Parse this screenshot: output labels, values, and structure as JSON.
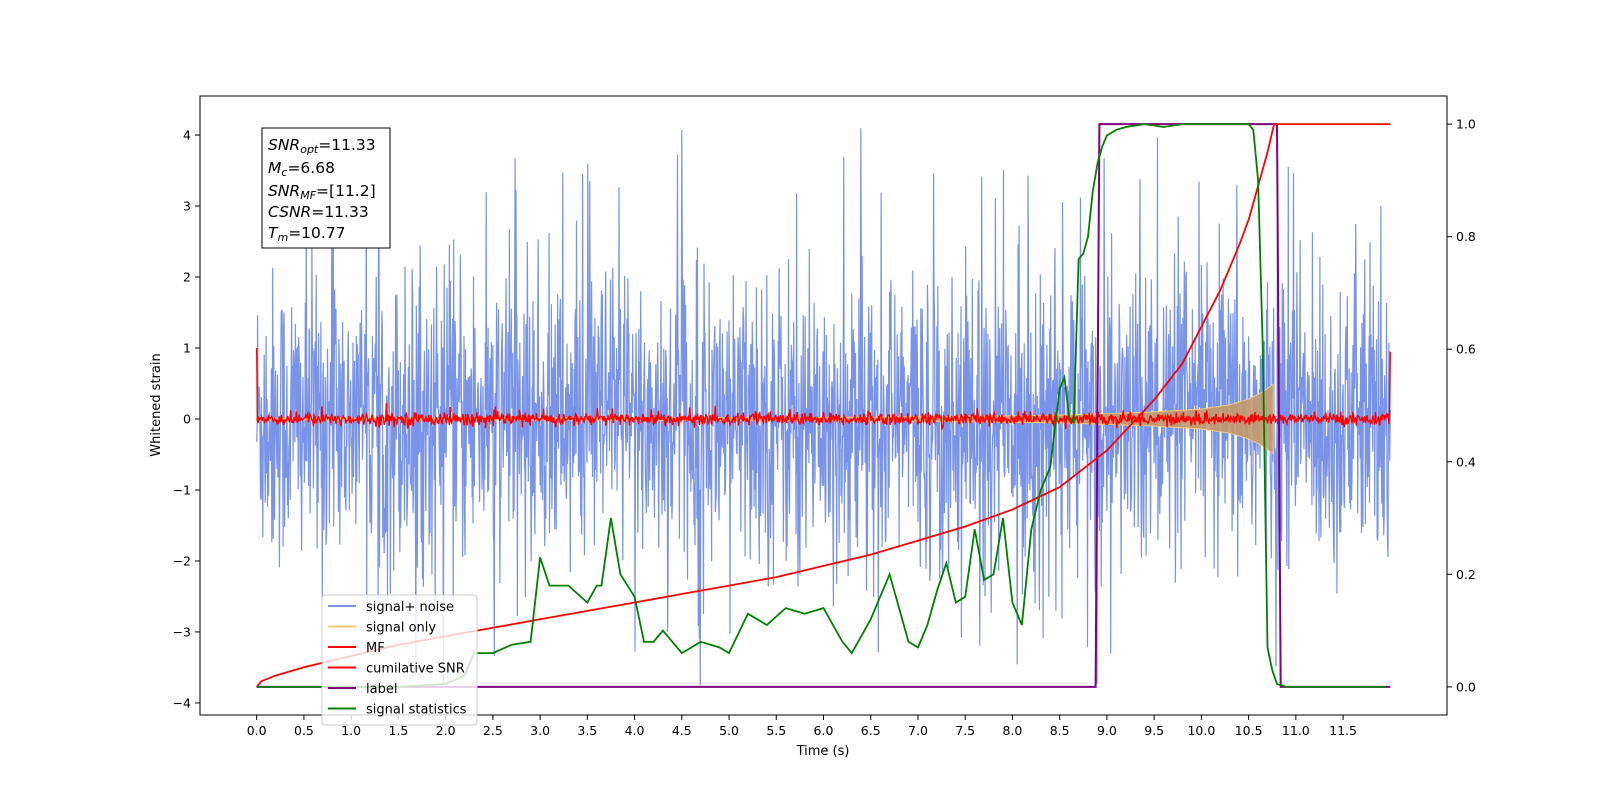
{
  "chart_data": {
    "type": "line",
    "title": "",
    "xlabel": "Time (s)",
    "ylabel": "Whitened strain",
    "xlim": [
      -0.6,
      12.6
    ],
    "ylim": [
      -4.17,
      4.55
    ],
    "y2lim": [
      -0.05,
      1.05
    ],
    "x_ticks": [
      "0.0",
      "0.5",
      "1.0",
      "1.5",
      "2.0",
      "2.5",
      "3.0",
      "3.5",
      "4.0",
      "4.5",
      "5.0",
      "5.5",
      "6.0",
      "6.5",
      "7.0",
      "7.5",
      "8.0",
      "8.5",
      "9.0",
      "9.5",
      "10.0",
      "10.5",
      "11.0",
      "11.5"
    ],
    "y_ticks": [
      "4",
      "3",
      "2",
      "1",
      "0",
      "−1",
      "−2",
      "−3",
      "−4"
    ],
    "y2_ticks": [
      "1.0",
      "0.8",
      "0.6",
      "0.4",
      "0.2",
      "0.0"
    ],
    "annotation": {
      "snr_opt": {
        "label": "SNR",
        "sub": "opt",
        "value": "=11.33"
      },
      "mc": {
        "label": "M",
        "sub": "c",
        "value": "=6.68"
      },
      "snr_mf": {
        "label": "SNR",
        "sub": "MF",
        "value": "=[11.2]"
      },
      "csnr": {
        "label": "CSNR",
        "sub": "",
        "value": "=11.33"
      },
      "tm": {
        "label": "T",
        "sub": "m",
        "value": "=10.77"
      }
    },
    "legend_position": "lower-left",
    "legend": [
      {
        "name": "signal+ noise",
        "color": "#7893e8"
      },
      {
        "name": "signal only",
        "color": "#f5c97a"
      },
      {
        "name": "MF",
        "color": "#ff0000"
      },
      {
        "name": "cumilative SNR",
        "color": "#ff0000"
      },
      {
        "name": "label",
        "color": "#800080"
      },
      {
        "name": "signal statistics",
        "color": "#008000"
      }
    ],
    "series": [
      {
        "name": "signal+ noise",
        "axis": "left",
        "color": "#7893e8",
        "description_values": {
          "x_start": 0.0,
          "x_end": 12.0,
          "y_typical_range": [
            -2.5,
            2.5
          ],
          "y_peak_max": 4.15,
          "y_peak_min": -3.75
        }
      },
      {
        "name": "signal only",
        "axis": "left",
        "color": "#f5c97a",
        "envelope": {
          "x": [
            0,
            2,
            4,
            6,
            7,
            8,
            8.5,
            9,
            9.5,
            10,
            10.3,
            10.5,
            10.65,
            10.77
          ],
          "amplitude": [
            0.01,
            0.012,
            0.016,
            0.022,
            0.03,
            0.045,
            0.055,
            0.075,
            0.1,
            0.14,
            0.2,
            0.28,
            0.38,
            0.5
          ]
        }
      },
      {
        "name": "MF",
        "axis": "left",
        "color": "#ff0000",
        "description_values": {
          "x_start": 0.0,
          "x_end": 12.0,
          "y_typical_range": [
            -0.12,
            0.12
          ],
          "y_start": 1.0,
          "y_end": 0.95
        }
      },
      {
        "name": "cumilative SNR",
        "axis": "right",
        "color": "#ff0000",
        "x": [
          0.0,
          0.05,
          0.2,
          0.5,
          1.0,
          1.5,
          2.0,
          2.5,
          3.0,
          3.5,
          4.0,
          4.5,
          5.0,
          5.5,
          6.0,
          6.5,
          7.0,
          7.5,
          8.0,
          8.5,
          9.0,
          9.5,
          9.8,
          10.0,
          10.2,
          10.4,
          10.5,
          10.6,
          10.7,
          10.77,
          12.0
        ],
        "y": [
          0.0,
          0.01,
          0.02,
          0.035,
          0.055,
          0.075,
          0.09,
          0.105,
          0.12,
          0.135,
          0.15,
          0.165,
          0.18,
          0.195,
          0.215,
          0.235,
          0.26,
          0.285,
          0.315,
          0.355,
          0.42,
          0.51,
          0.575,
          0.64,
          0.705,
          0.785,
          0.83,
          0.89,
          0.95,
          1.0,
          1.0
        ]
      },
      {
        "name": "label",
        "axis": "right",
        "color": "#800080",
        "x": [
          0.0,
          8.88,
          8.92,
          10.8,
          10.84,
          12.0
        ],
        "y": [
          0.0,
          0.0,
          1.0,
          1.0,
          0.0,
          0.0
        ]
      },
      {
        "name": "signal statistics",
        "axis": "right",
        "color": "#008000",
        "x": [
          0.0,
          1.5,
          2.0,
          2.2,
          2.3,
          2.5,
          2.7,
          2.9,
          3.0,
          3.1,
          3.3,
          3.5,
          3.6,
          3.65,
          3.75,
          3.85,
          4.0,
          4.1,
          4.2,
          4.3,
          4.5,
          4.7,
          4.9,
          5.0,
          5.2,
          5.4,
          5.6,
          5.8,
          6.0,
          6.2,
          6.3,
          6.5,
          6.7,
          6.9,
          7.0,
          7.1,
          7.2,
          7.3,
          7.4,
          7.5,
          7.6,
          7.7,
          7.8,
          7.9,
          8.0,
          8.1,
          8.2,
          8.3,
          8.4,
          8.5,
          8.55,
          8.6,
          8.65,
          8.7,
          8.75,
          8.8,
          8.85,
          8.9,
          8.95,
          9.0,
          9.1,
          9.2,
          9.4,
          9.6,
          9.8,
          10.0,
          10.2,
          10.4,
          10.5,
          10.55,
          10.6,
          10.65,
          10.7,
          10.75,
          10.8,
          10.9,
          11.0,
          11.5,
          11.95
        ],
        "y": [
          0.0,
          0.0,
          0.005,
          0.02,
          0.06,
          0.06,
          0.075,
          0.08,
          0.23,
          0.18,
          0.18,
          0.15,
          0.18,
          0.18,
          0.3,
          0.2,
          0.16,
          0.08,
          0.08,
          0.1,
          0.06,
          0.08,
          0.07,
          0.06,
          0.13,
          0.11,
          0.14,
          0.13,
          0.14,
          0.08,
          0.06,
          0.12,
          0.2,
          0.08,
          0.07,
          0.11,
          0.17,
          0.22,
          0.15,
          0.16,
          0.28,
          0.19,
          0.2,
          0.3,
          0.15,
          0.11,
          0.28,
          0.35,
          0.39,
          0.53,
          0.55,
          0.48,
          0.47,
          0.76,
          0.77,
          0.8,
          0.88,
          0.93,
          0.96,
          0.98,
          0.99,
          0.995,
          1.0,
          0.995,
          1.0,
          1.0,
          1.0,
          1.0,
          1.0,
          0.99,
          0.9,
          0.6,
          0.07,
          0.03,
          0.005,
          0.0,
          0.0,
          0.0,
          0.0
        ]
      }
    ]
  }
}
